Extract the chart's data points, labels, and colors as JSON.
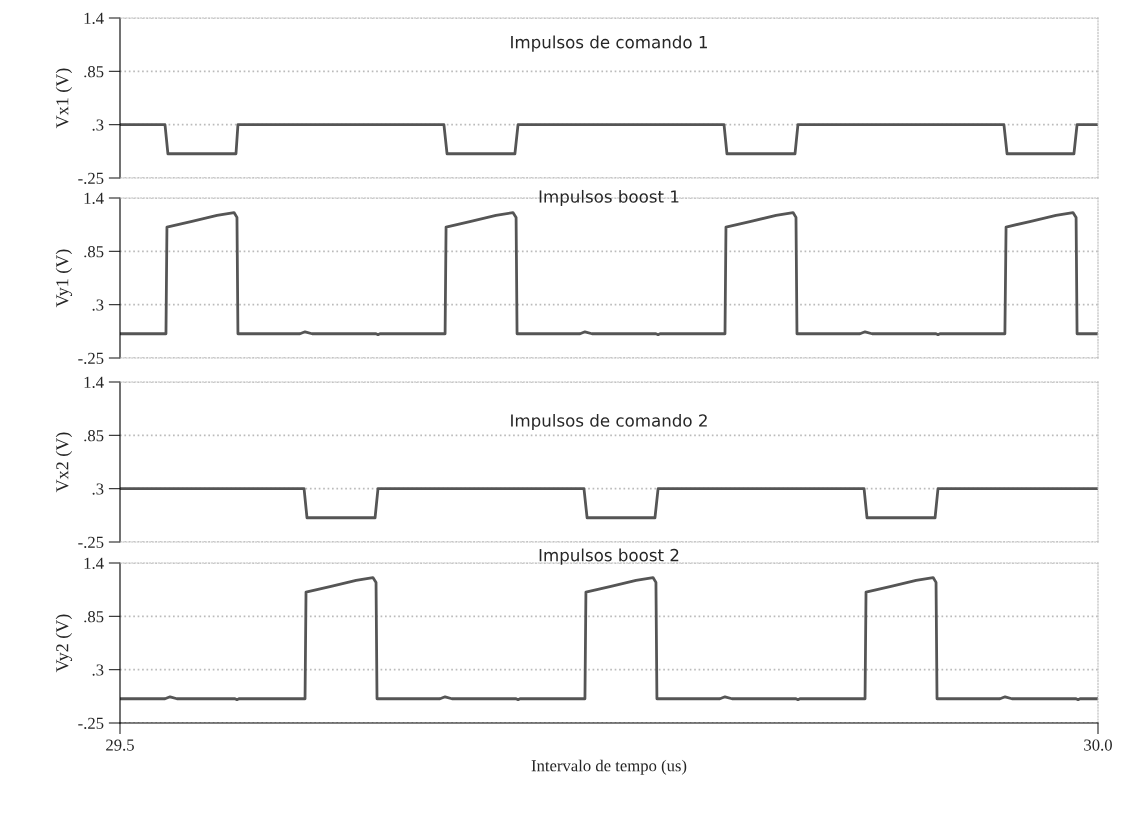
{
  "chart_data": [
    {
      "type": "line",
      "title": "Impulsos de comando 1",
      "ylabel": "Vx1 (V)",
      "xlim": [
        29.5,
        30.0
      ],
      "ylim": [
        -0.25,
        1.4
      ],
      "yticks": [
        {
          "value": 1.4,
          "label": "1.4"
        },
        {
          "value": 0.85,
          "label": ".85"
        },
        {
          "value": 0.3,
          "label": ".3"
        },
        {
          "value": -0.25,
          "label": "-.25"
        }
      ],
      "grid": "y",
      "tick_labels": "y",
      "line_style": "solid",
      "x": [
        29.5,
        29.523,
        29.5245,
        29.5593,
        29.5603,
        29.6656,
        29.6672,
        29.7019,
        29.7035,
        29.8088,
        29.8103,
        29.8451,
        29.8466,
        29.9519,
        29.9535,
        29.9877,
        29.9893,
        30.0
      ],
      "series": [
        {
          "color": "#555555",
          "values": [
            0.3,
            0.3,
            0.0,
            0.0,
            0.3,
            0.3,
            0.0,
            0.0,
            0.3,
            0.3,
            0.0,
            0.0,
            0.3,
            0.3,
            0.0,
            0.0,
            0.3,
            0.3
          ]
        }
      ]
    },
    {
      "type": "line",
      "title": "Impulsos boost 1",
      "ylabel": "Vy1 (V)",
      "xlim": [
        29.5,
        30.0
      ],
      "ylim": [
        -0.25,
        1.4
      ],
      "yticks": [
        {
          "value": 1.4,
          "label": "1.4"
        },
        {
          "value": 0.85,
          "label": ".85"
        },
        {
          "value": 0.3,
          "label": ".3"
        },
        {
          "value": -0.25,
          "label": "-.25"
        }
      ],
      "grid": "y",
      "tick_labels": "y",
      "line_style": "solid",
      "x": [
        29.5,
        29.5235,
        29.524,
        29.5368,
        29.5496,
        29.5583,
        29.5598,
        29.5603,
        29.592,
        29.5946,
        29.5982,
        29.6309,
        29.6319,
        29.6329,
        29.6662,
        29.6667,
        29.6794,
        29.6922,
        29.7009,
        29.7025,
        29.703,
        29.7352,
        29.7377,
        29.7413,
        29.774,
        29.7751,
        29.7761,
        29.8093,
        29.8098,
        29.8226,
        29.8354,
        29.8441,
        29.8456,
        29.8461,
        29.8783,
        29.8809,
        29.8845,
        29.9172,
        29.9182,
        29.9192,
        29.9524,
        29.953,
        29.9657,
        29.9785,
        29.9872,
        29.9888,
        29.9893,
        30.0
      ],
      "series": [
        {
          "color": "#555555",
          "values": [
            0.0,
            0.0,
            1.1,
            1.16,
            1.22,
            1.25,
            1.2,
            0.0,
            0.0,
            0.02,
            0.0,
            0.0,
            -0.01,
            0.0,
            0.0,
            1.1,
            1.16,
            1.22,
            1.25,
            1.2,
            0.0,
            0.0,
            0.02,
            0.0,
            0.0,
            -0.01,
            0.0,
            0.0,
            1.1,
            1.16,
            1.22,
            1.25,
            1.2,
            0.0,
            0.0,
            0.02,
            0.0,
            0.0,
            -0.01,
            0.0,
            0.0,
            1.1,
            1.16,
            1.22,
            1.25,
            1.2,
            0.0,
            0.0
          ]
        }
      ]
    },
    {
      "type": "line",
      "title": "Impulsos de comando 2",
      "ylabel": "Vx2 (V)",
      "xlim": [
        29.5,
        30.0
      ],
      "ylim": [
        -0.25,
        1.4
      ],
      "yticks": [
        {
          "value": 1.4,
          "label": "1.4"
        },
        {
          "value": 0.85,
          "label": ".85"
        },
        {
          "value": 0.3,
          "label": ".3"
        },
        {
          "value": -0.25,
          "label": "-.25"
        }
      ],
      "grid": "y",
      "tick_labels": "y",
      "line_style": "solid",
      "x": [
        29.5,
        29.5941,
        29.5956,
        29.6304,
        29.6319,
        29.7372,
        29.7388,
        29.7735,
        29.7751,
        29.8804,
        29.8819,
        29.9167,
        29.9182,
        30.0
      ],
      "series": [
        {
          "color": "#555555",
          "values": [
            0.3,
            0.3,
            0.0,
            0.0,
            0.3,
            0.3,
            0.0,
            0.0,
            0.3,
            0.3,
            0.0,
            0.0,
            0.3,
            0.3
          ]
        }
      ]
    },
    {
      "type": "line",
      "title": "Impulsos boost 2",
      "ylabel": "Vy2 (V)",
      "xlabel": "Intervalo de tempo (us)",
      "xlim": [
        29.5,
        30.0
      ],
      "ylim": [
        -0.25,
        1.4
      ],
      "xticks": [
        29.5,
        {
          "value": 30.0,
          "label": "30.0"
        }
      ],
      "yticks": [
        {
          "value": 1.4,
          "label": "1.4"
        },
        {
          "value": 0.85,
          "label": ".85"
        },
        {
          "value": 0.3,
          "label": ".3"
        },
        {
          "value": -0.25,
          "label": "-.25"
        }
      ],
      "grid": "y",
      "line_style": "solid",
      "x": [
        29.5,
        29.523,
        29.5256,
        29.5291,
        29.5588,
        29.5598,
        29.5608,
        29.5946,
        29.5951,
        29.6079,
        29.6207,
        29.6293,
        29.6309,
        29.6314,
        29.6636,
        29.6662,
        29.6697,
        29.7025,
        29.7035,
        29.7045,
        29.7377,
        29.7382,
        29.751,
        29.7638,
        29.7725,
        29.774,
        29.7745,
        29.8067,
        29.8093,
        29.8129,
        29.8456,
        29.8466,
        29.8476,
        29.8809,
        29.8814,
        29.8942,
        29.907,
        29.9157,
        29.9172,
        29.9177,
        29.9499,
        29.9525,
        29.956,
        29.9888,
        29.9898,
        29.9908,
        30.0
      ],
      "series": [
        {
          "color": "#555555",
          "values": [
            0.0,
            0.0,
            0.02,
            0.0,
            0.0,
            -0.01,
            0.0,
            0.0,
            1.1,
            1.16,
            1.22,
            1.25,
            1.2,
            0.0,
            0.0,
            0.02,
            0.0,
            0.0,
            -0.01,
            0.0,
            0.0,
            1.1,
            1.16,
            1.22,
            1.25,
            1.2,
            0.0,
            0.0,
            0.02,
            0.0,
            0.0,
            -0.01,
            0.0,
            0.0,
            1.1,
            1.16,
            1.22,
            1.25,
            1.2,
            0.0,
            0.0,
            0.02,
            0.0,
            0.0,
            -0.01,
            0.0,
            0.0
          ]
        }
      ]
    }
  ]
}
